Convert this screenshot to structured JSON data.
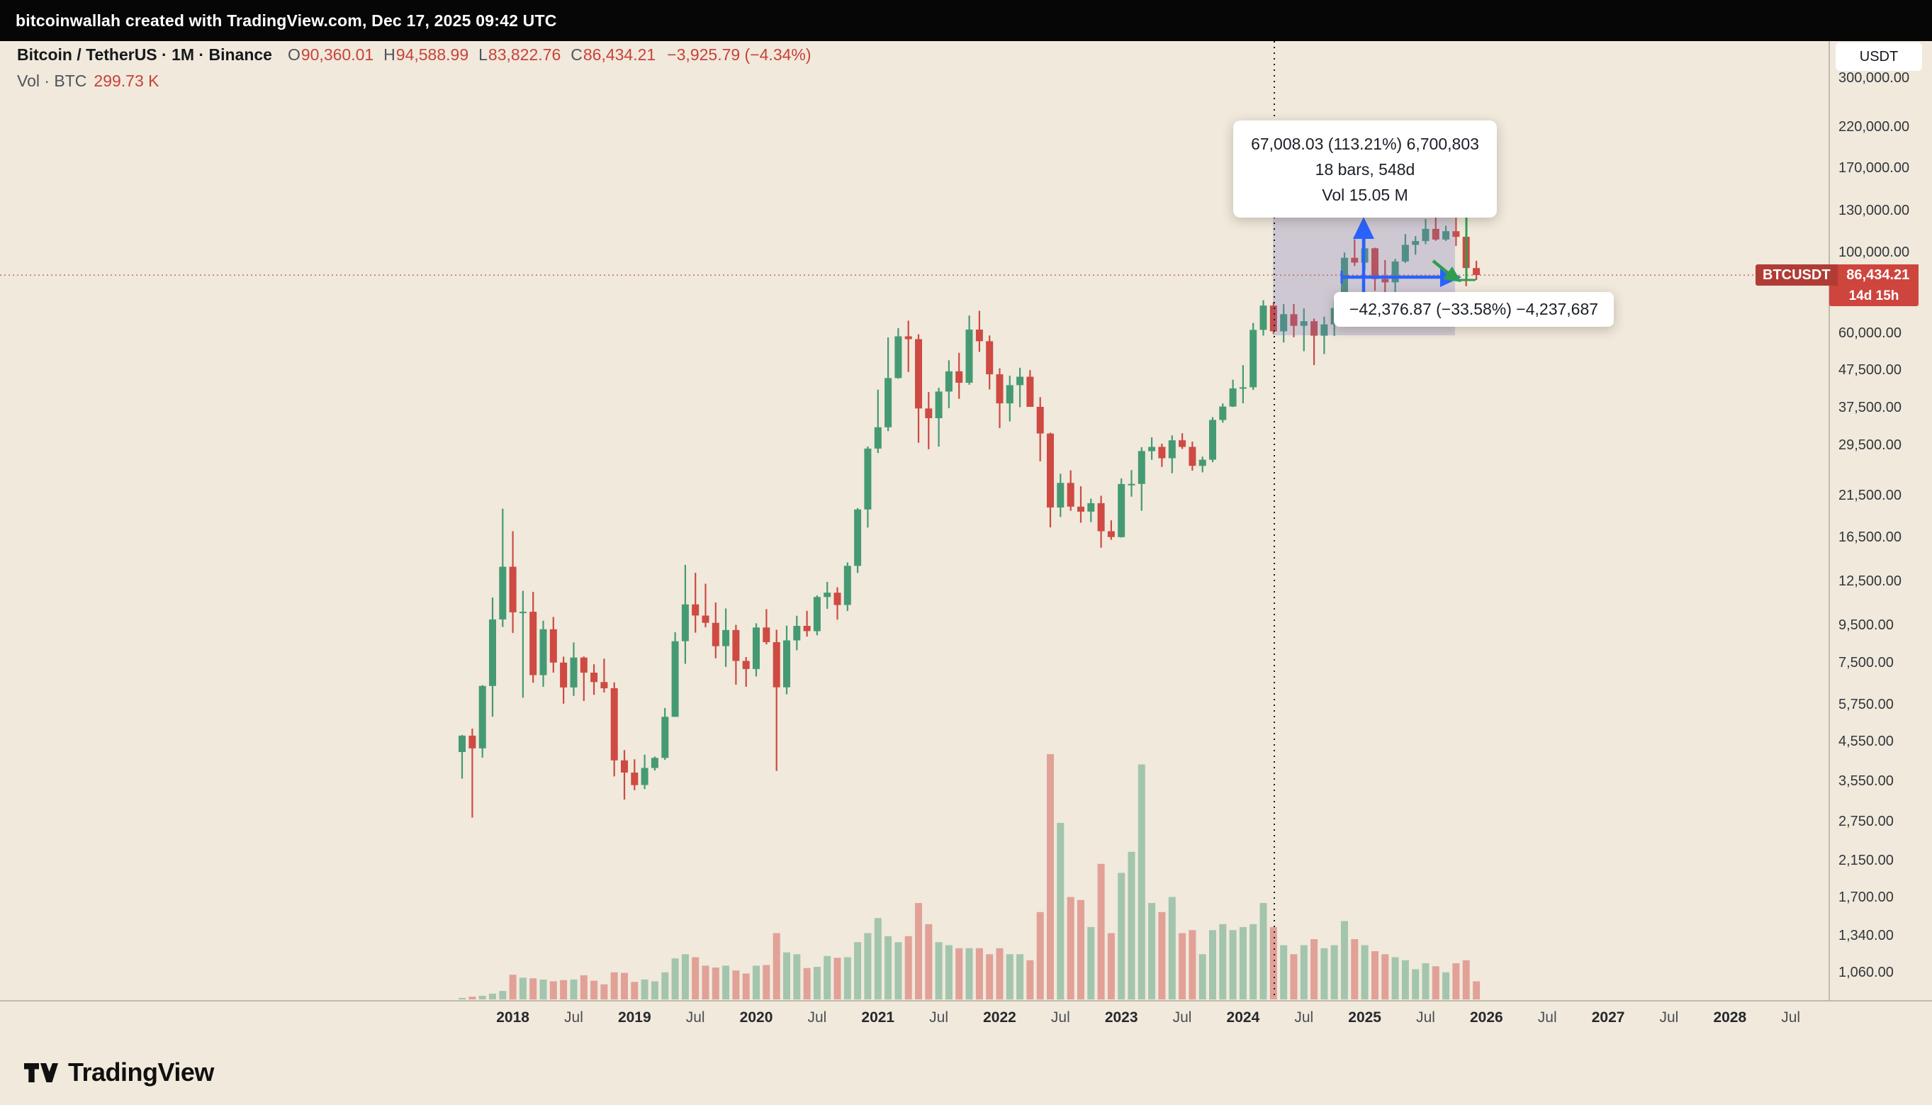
{
  "topbar": {
    "text": "bitcoinwallah created with TradingView.com, Dec 17, 2025 09:42 UTC"
  },
  "legend": {
    "symbol": "Bitcoin / TetherUS · 1M · Binance",
    "ohlc": [
      {
        "label": "O",
        "value": "90,360.01"
      },
      {
        "label": "H",
        "value": "94,588.99"
      },
      {
        "label": "L",
        "value": "83,822.76"
      },
      {
        "label": "C",
        "value": "86,434.21"
      }
    ],
    "change": "−3,925.79 (−4.34%)",
    "vol_label": "Vol · BTC",
    "vol_value": "299.73 K"
  },
  "measure": {
    "up_tooltip": {
      "line1": "67,008.03 (113.21%) 6,700,803",
      "line2": "18 bars, 548d",
      "line3": "Vol 15.05 M"
    },
    "down_tooltip": {
      "line1": "−42,376.87 (−33.58%) −4,237,687"
    }
  },
  "price_axis": {
    "currency_button": "USDT",
    "labels": [
      "300,000.00",
      "220,000.00",
      "170,000.00",
      "130,000.00",
      "100,000.00",
      "60,000.00",
      "47,500.00",
      "37,500.00",
      "29,500.00",
      "21,500.00",
      "16,500.00",
      "12,500.00",
      "9,500.00",
      "7,500.00",
      "5,750.00",
      "4,550.00",
      "3,550.00",
      "2,750.00",
      "2,150.00",
      "1,700.00",
      "1,340.00",
      "1,060.00"
    ],
    "price_tag": {
      "symbol": "BTCUSDT",
      "price": "86,434.21",
      "countdown": "14d 15h"
    }
  },
  "time_axis": {
    "labels": [
      "2018",
      "Jul",
      "2019",
      "Jul",
      "2020",
      "Jul",
      "2021",
      "Jul",
      "2022",
      "Jul",
      "2023",
      "Jul",
      "2024",
      "Jul",
      "2025",
      "Jul",
      "2026",
      "Jul",
      "2027",
      "Jul",
      "2028",
      "Jul"
    ]
  },
  "footer": {
    "logo_text": "TradingView"
  },
  "colors": {
    "background": "#f0e9dc",
    "up": "#459a74",
    "down": "#ce4a42",
    "vol_up": "rgba(69,154,116,0.45)",
    "vol_down": "rgba(206,74,66,0.45)",
    "measure_fill": "rgba(116,110,190,0.27)",
    "drawing_blue": "#2962ff",
    "drawing_green": "#2f9e4f",
    "price_tag_bg": "#ce453e",
    "price_line": "#ce4a42",
    "axis_line": "#b3aa99"
  },
  "chart_data": {
    "type": "candlestick",
    "title": "Bitcoin / TetherUS · 1M · Binance",
    "y_scale": "log",
    "legend_position": "top-left",
    "grid": false,
    "current_price": 86434.21,
    "ylim": [
      1000,
      320000
    ],
    "volume_unit": "thousand BTC",
    "columns": [
      "month",
      "open",
      "high",
      "low",
      "close",
      "volume_kBTC"
    ],
    "candles": [
      [
        "2017-08",
        4261,
        4745,
        3600,
        4724,
        20
      ],
      [
        "2017-09",
        4724,
        4939,
        2817,
        4360,
        45
      ],
      [
        "2017-10",
        4360,
        6498,
        4110,
        6463,
        60
      ],
      [
        "2017-11",
        6463,
        11300,
        5325,
        9838,
        95
      ],
      [
        "2017-12",
        9838,
        19798,
        9380,
        13716,
        140
      ],
      [
        "2018-01",
        13716,
        17176,
        9035,
        10285,
        410
      ],
      [
        "2018-02",
        10285,
        11786,
        6000,
        10326,
        360
      ],
      [
        "2018-03",
        10326,
        11710,
        6600,
        6923,
        350
      ],
      [
        "2018-04",
        6923,
        9759,
        6430,
        9246,
        330
      ],
      [
        "2018-05",
        9246,
        9990,
        7032,
        7494,
        300
      ],
      [
        "2018-06",
        7494,
        7780,
        5780,
        6404,
        320
      ],
      [
        "2018-07",
        6404,
        8507,
        6070,
        7735,
        330
      ],
      [
        "2018-08",
        7735,
        7786,
        5880,
        7033,
        400
      ],
      [
        "2018-09",
        7033,
        7412,
        6111,
        6626,
        310
      ],
      [
        "2018-10",
        6626,
        7680,
        6205,
        6371,
        250
      ],
      [
        "2018-11",
        6371,
        6615,
        3652,
        4041,
        450
      ],
      [
        "2018-12",
        4041,
        4312,
        3156,
        3742,
        440
      ],
      [
        "2019-01",
        3742,
        4069,
        3349,
        3457,
        290
      ],
      [
        "2019-02",
        3460,
        4190,
        3373,
        3853,
        330
      ],
      [
        "2019-03",
        3853,
        4140,
        3790,
        4105,
        300
      ],
      [
        "2019-04",
        4105,
        5627,
        4054,
        5320,
        450
      ],
      [
        "2019-05",
        5321,
        9074,
        5316,
        8574,
        680
      ],
      [
        "2019-06",
        8574,
        13880,
        7432,
        10817,
        750
      ],
      [
        "2019-07",
        10818,
        13200,
        9049,
        10085,
        700
      ],
      [
        "2019-08",
        10080,
        12325,
        9360,
        9630,
        560
      ],
      [
        "2019-09",
        9630,
        10949,
        7700,
        8310,
        530
      ],
      [
        "2019-10",
        8310,
        10540,
        7293,
        9199,
        560
      ],
      [
        "2019-11",
        9199,
        9505,
        6515,
        7569,
        480
      ],
      [
        "2019-12",
        7569,
        7760,
        6435,
        7193,
        430
      ],
      [
        "2020-01",
        7195,
        9599,
        6863,
        9350,
        560
      ],
      [
        "2020-02",
        9351,
        10500,
        8407,
        8523,
        570
      ],
      [
        "2020-03",
        8523,
        9219,
        3782,
        6410,
        1100
      ],
      [
        "2020-04",
        6410,
        9460,
        6135,
        8620,
        780
      ],
      [
        "2020-05",
        8620,
        10067,
        8100,
        9446,
        750
      ],
      [
        "2020-06",
        9446,
        10380,
        8830,
        9138,
        520
      ],
      [
        "2020-07",
        9138,
        11450,
        8900,
        11335,
        540
      ],
      [
        "2020-08",
        11335,
        12468,
        10517,
        11649,
        720
      ],
      [
        "2020-09",
        11649,
        12050,
        9825,
        10776,
        690
      ],
      [
        "2020-10",
        10776,
        14100,
        10380,
        13797,
        700
      ],
      [
        "2020-11",
        13797,
        19863,
        13195,
        19695,
        950
      ],
      [
        "2020-12",
        19695,
        29300,
        17572,
        28923,
        1100
      ],
      [
        "2021-01",
        28923,
        41950,
        28130,
        33092,
        1350
      ],
      [
        "2021-02",
        33092,
        58352,
        32296,
        45135,
        1050
      ],
      [
        "2021-03",
        45135,
        61844,
        44950,
        58740,
        950
      ],
      [
        "2021-04",
        58740,
        64854,
        46930,
        57694,
        1050
      ],
      [
        "2021-05",
        57694,
        59500,
        30000,
        37253,
        1600
      ],
      [
        "2021-06",
        37253,
        41330,
        28805,
        35040,
        1250
      ],
      [
        "2021-07",
        35040,
        42448,
        29278,
        41461,
        950
      ],
      [
        "2021-08",
        41461,
        50500,
        37332,
        47100,
        900
      ],
      [
        "2021-09",
        47100,
        52920,
        39600,
        43824,
        850
      ],
      [
        "2021-10",
        43824,
        67000,
        43283,
        61299,
        850
      ],
      [
        "2021-11",
        61299,
        69000,
        53256,
        56950,
        850
      ],
      [
        "2021-12",
        56950,
        59053,
        42000,
        46216,
        750
      ],
      [
        "2022-01",
        46216,
        47990,
        32917,
        38466,
        850
      ],
      [
        "2022-02",
        38466,
        45821,
        34322,
        43160,
        750
      ],
      [
        "2022-03",
        43160,
        48189,
        37555,
        45510,
        750
      ],
      [
        "2022-04",
        45510,
        47448,
        37702,
        37630,
        650
      ],
      [
        "2022-05",
        37630,
        40022,
        26700,
        31801,
        1450
      ],
      [
        "2022-06",
        31801,
        31982,
        17593,
        19942,
        4070
      ],
      [
        "2022-07",
        19942,
        24668,
        18781,
        23293,
        2930
      ],
      [
        "2022-08",
        23293,
        25211,
        19526,
        20048,
        1700
      ],
      [
        "2022-09",
        20048,
        22799,
        18125,
        19424,
        1650
      ],
      [
        "2022-10",
        19424,
        21085,
        18190,
        20490,
        1200
      ],
      [
        "2022-11",
        20490,
        21480,
        15476,
        17163,
        2250
      ],
      [
        "2022-12",
        17163,
        18387,
        16256,
        16542,
        1100
      ],
      [
        "2023-01",
        16542,
        23960,
        16499,
        23125,
        2100
      ],
      [
        "2023-02",
        23125,
        25250,
        21351,
        23141,
        2450
      ],
      [
        "2023-03",
        23141,
        29184,
        19549,
        28465,
        3900
      ],
      [
        "2023-04",
        28465,
        31050,
        26942,
        29233,
        1600
      ],
      [
        "2023-05",
        29233,
        29820,
        25750,
        27210,
        1450
      ],
      [
        "2023-06",
        27210,
        31431,
        24750,
        30472,
        1700
      ],
      [
        "2023-07",
        30472,
        31850,
        28850,
        29230,
        1100
      ],
      [
        "2023-08",
        29230,
        30230,
        25166,
        25934,
        1150
      ],
      [
        "2023-09",
        25934,
        27483,
        24900,
        26962,
        750
      ],
      [
        "2023-10",
        26962,
        35280,
        26538,
        34656,
        1150
      ],
      [
        "2023-11",
        34656,
        38450,
        34060,
        37712,
        1250
      ],
      [
        "2023-12",
        37712,
        44700,
        37615,
        42283,
        1150
      ],
      [
        "2024-01",
        42283,
        48969,
        38501,
        42580,
        1200
      ],
      [
        "2024-02",
        42580,
        63933,
        41884,
        61179,
        1250
      ],
      [
        "2024-03",
        61179,
        73777,
        59005,
        71333,
        1600
      ],
      [
        "2024-04",
        71333,
        72797,
        59600,
        60636,
        1200
      ],
      [
        "2024-05",
        60636,
        71979,
        56500,
        67540,
        900
      ],
      [
        "2024-06",
        67540,
        71997,
        58402,
        62772,
        750
      ],
      [
        "2024-07",
        62772,
        70079,
        53485,
        64627,
        900
      ],
      [
        "2024-08",
        64627,
        65659,
        49000,
        58978,
        1000
      ],
      [
        "2024-09",
        58978,
        66500,
        52530,
        63330,
        850
      ],
      [
        "2024-10",
        63330,
        73620,
        58872,
        70215,
        900
      ],
      [
        "2024-11",
        70215,
        99655,
        66835,
        96449,
        1300
      ],
      [
        "2024-12",
        96449,
        108353,
        91530,
        93557,
        1000
      ],
      [
        "2025-01",
        93557,
        109588,
        89256,
        102405,
        900
      ],
      [
        "2025-02",
        102405,
        102781,
        78258,
        84349,
        800
      ],
      [
        "2025-03",
        84349,
        95000,
        76606,
        82548,
        750
      ],
      [
        "2025-04",
        82548,
        95768,
        74508,
        94207,
        700
      ],
      [
        "2025-05",
        94207,
        111980,
        93360,
        104645,
        650
      ],
      [
        "2025-06",
        104645,
        110530,
        98240,
        107170,
        500
      ],
      [
        "2025-07",
        107170,
        123218,
        105116,
        115765,
        600
      ],
      [
        "2025-08",
        115765,
        124474,
        107350,
        108236,
        550
      ],
      [
        "2025-09",
        108236,
        118000,
        107270,
        114056,
        450
      ],
      [
        "2025-10",
        114056,
        126296,
        103900,
        110085,
        600
      ],
      [
        "2025-11",
        110085,
        112000,
        80600,
        90360,
        650
      ],
      [
        "2025-12",
        90360,
        94589,
        83823,
        86434,
        300
      ]
    ]
  }
}
